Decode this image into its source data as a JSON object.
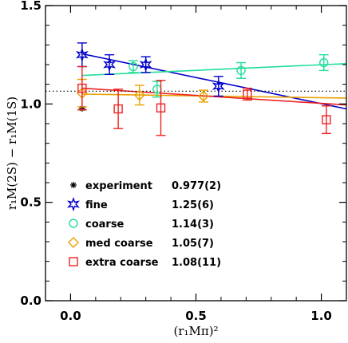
{
  "chart_data": {
    "type": "scatter",
    "xlabel": "(r₁Mπ)²",
    "ylabel": "r₁M(2S) − r₁M(1S)",
    "xlim": [
      -0.1,
      1.1
    ],
    "ylim": [
      0.0,
      1.5
    ],
    "xticks": [
      0.0,
      0.5,
      1.0
    ],
    "xtick_labels": [
      "0.0",
      "0.5",
      "1.0"
    ],
    "yticks": [
      0.0,
      0.5,
      1.0,
      1.5
    ],
    "ytick_labels": [
      "0.0",
      "0.5",
      "1.0",
      "1.5"
    ],
    "grid": false,
    "legend_position": "bottom-left",
    "reference_line": {
      "y": 1.065,
      "style": "dotted",
      "color": "#000000"
    },
    "series": [
      {
        "name": "experiment",
        "value_label": "0.977(2)",
        "marker": "asterisk",
        "color": "#000000",
        "points": [
          {
            "x": 0.046,
            "y": 0.977,
            "err": 0.002
          }
        ],
        "fit": null
      },
      {
        "name": "fine",
        "value_label": "1.25(6)",
        "marker": "star",
        "color": "#0000cc",
        "points": [
          {
            "x": 0.046,
            "y": 1.25,
            "err": 0.06
          },
          {
            "x": 0.155,
            "y": 1.2,
            "err": 0.05
          },
          {
            "x": 0.3,
            "y": 1.2,
            "err": 0.04
          },
          {
            "x": 0.59,
            "y": 1.09,
            "err": 0.05
          }
        ],
        "fit": {
          "x0": 0.046,
          "y0": 1.255,
          "x1": 1.1,
          "y1": 0.975
        }
      },
      {
        "name": "coarse",
        "value_label": "1.14(3)",
        "marker": "circle",
        "color": "#22dd99",
        "points": [
          {
            "x": 0.25,
            "y": 1.19,
            "err": 0.03
          },
          {
            "x": 0.345,
            "y": 1.075,
            "err": 0.04
          },
          {
            "x": 0.68,
            "y": 1.17,
            "err": 0.04
          },
          {
            "x": 1.01,
            "y": 1.21,
            "err": 0.04
          }
        ],
        "fit": {
          "x0": 0.046,
          "y0": 1.145,
          "x1": 1.1,
          "y1": 1.205
        }
      },
      {
        "name": "med coarse",
        "value_label": "1.05(7)",
        "marker": "diamond",
        "color": "#e8a000",
        "points": [
          {
            "x": 0.046,
            "y": 1.055,
            "err": 0.07
          },
          {
            "x": 0.275,
            "y": 1.045,
            "err": 0.05
          },
          {
            "x": 0.53,
            "y": 1.04,
            "err": 0.03
          }
        ],
        "fit": {
          "x0": 0.046,
          "y0": 1.05,
          "x1": 1.1,
          "y1": 1.03
        }
      },
      {
        "name": "extra coarse",
        "value_label": "1.08(11)",
        "marker": "square",
        "color": "#ee2222",
        "points": [
          {
            "x": 0.046,
            "y": 1.08,
            "err": 0.11
          },
          {
            "x": 0.19,
            "y": 0.975,
            "err": 0.1
          },
          {
            "x": 0.36,
            "y": 0.98,
            "err": 0.14
          },
          {
            "x": 0.705,
            "y": 1.05,
            "err": 0.03
          },
          {
            "x": 1.02,
            "y": 0.92,
            "err": 0.07
          }
        ],
        "fit": {
          "x0": 0.046,
          "y0": 1.08,
          "x1": 1.1,
          "y1": 0.995
        }
      }
    ]
  }
}
